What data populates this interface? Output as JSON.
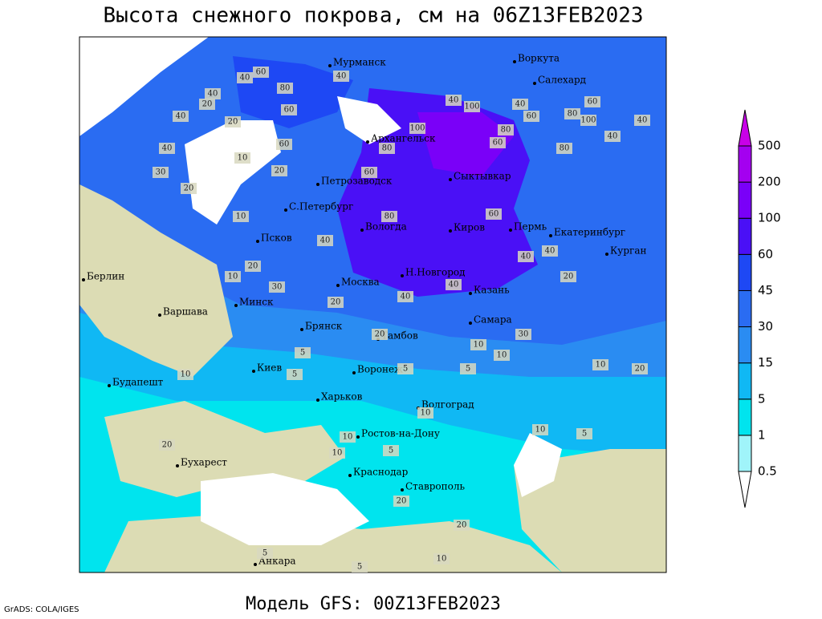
{
  "title": "Высота снежного покрова, см на 06Z13FEB2023",
  "footer": "Модель GFS: 00Z13FEB2023",
  "credit": "GrADS: COLA/IGES",
  "cities": [
    "Мурманск",
    "Воркута",
    "Салехард",
    "Архангельск",
    "Сыктывкар",
    "Петрозаводск",
    "С.Петербург",
    "Вологда",
    "Киров",
    "Пермь",
    "Екатеринбург",
    "Курган",
    "Псков",
    "Берлин",
    "Н.Новгород",
    "Москва",
    "Казань",
    "Минск",
    "Варшава",
    "Самара",
    "Брянск",
    "Тамбов",
    "Киев",
    "Воронеж",
    "Будапешт",
    "Харьков",
    "Волгоград",
    "Ростов-на-Дону",
    "Бухарест",
    "Краснодар",
    "Ставрополь",
    "Анкара"
  ],
  "contour_labels": [
    40,
    60,
    80,
    40,
    60,
    40,
    40,
    20,
    40,
    30,
    20,
    20,
    10,
    60,
    80,
    100,
    100,
    60,
    80,
    80,
    40,
    60,
    80,
    100,
    40,
    60,
    40,
    40,
    20,
    10,
    20,
    40,
    60,
    80,
    60,
    40,
    40,
    20,
    10,
    30,
    40,
    40,
    20,
    30,
    20,
    10,
    5,
    10,
    5,
    10,
    5,
    5,
    10,
    20,
    10,
    10,
    5,
    10,
    5,
    20,
    20,
    10,
    5,
    10,
    5,
    20
  ],
  "colorbar": {
    "levels": [
      0.5,
      1,
      5,
      15,
      30,
      45,
      60,
      100,
      200,
      500
    ],
    "colors": [
      "#ffffff",
      "#a0f4fa",
      "#00e4ee",
      "#10b8f4",
      "#2a8cf2",
      "#2a6cf2",
      "#1e48f4",
      "#4a10f6",
      "#7a00f8",
      "#a400f0",
      "#c800e8"
    ]
  }
}
